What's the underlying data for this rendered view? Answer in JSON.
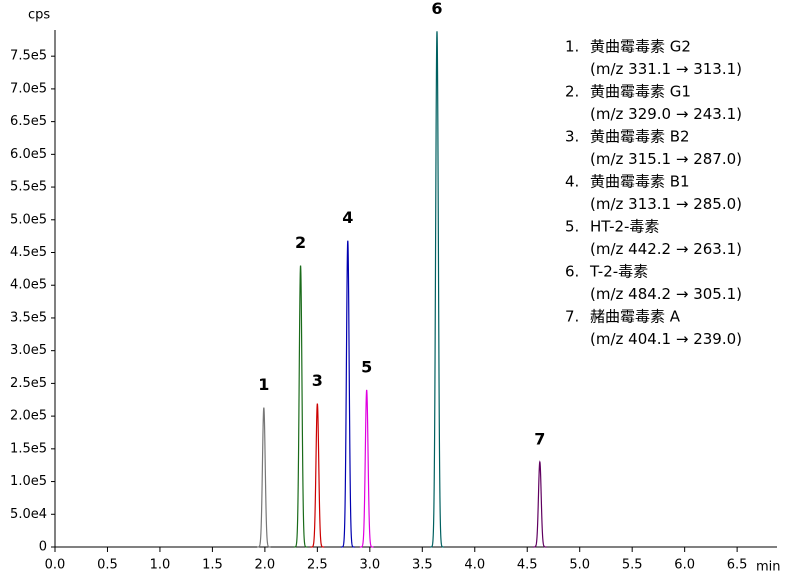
{
  "chart_data": {
    "type": "chromatogram",
    "y_label": "cps",
    "x_label": "min",
    "xlim": [
      0,
      6.88
    ],
    "ylim": [
      0,
      790000
    ],
    "xticks": [
      {
        "value": 0,
        "label": "0.0"
      },
      0.5,
      {
        "value": 1,
        "label": "1.0"
      },
      1.5,
      {
        "value": 2,
        "label": "2.0"
      },
      2.5,
      {
        "value": 3,
        "label": "3.0"
      },
      3.5,
      {
        "value": 4,
        "label": "4.0"
      },
      4.5,
      {
        "value": 5,
        "label": "5.0"
      },
      5.5,
      {
        "value": 6,
        "label": "6.0"
      },
      6.5
    ],
    "yticks": [
      0,
      {
        "value": 50000,
        "label": "5.0e4"
      },
      {
        "value": 100000,
        "label": "1.0e5"
      },
      {
        "value": 150000,
        "label": "1.5e5"
      },
      {
        "value": 200000,
        "label": "2.0e5"
      },
      {
        "value": 250000,
        "label": "2.5e5"
      },
      {
        "value": 300000,
        "label": "3.0e5"
      },
      {
        "value": 350000,
        "label": "3.5e5"
      },
      {
        "value": 400000,
        "label": "4.0e5"
      },
      {
        "value": 450000,
        "label": "4.5e5"
      },
      {
        "value": 500000,
        "label": "5.0e5"
      },
      {
        "value": 550000,
        "label": "5.5e5"
      },
      {
        "value": 600000,
        "label": "6.0e5"
      },
      {
        "value": 650000,
        "label": "6.5e5"
      },
      {
        "value": 700000,
        "label": "7.0e5"
      },
      {
        "value": 750000,
        "label": "7.5e5"
      }
    ],
    "series": [
      {
        "peak_label": "1",
        "legend_number": "1.",
        "name": "黄曲霉毒素 G2",
        "transition": "(m/z 331.1 → 313.1)",
        "color": "#777777",
        "x": [
          1.99
        ],
        "values": [
          213000
        ]
      },
      {
        "peak_label": "2",
        "legend_number": "2.",
        "name": "黄曲霉毒素 G1",
        "transition": "(m/z 329.0 → 243.1)",
        "color": "#1a6b1a",
        "x": [
          2.34
        ],
        "values": [
          430000
        ]
      },
      {
        "peak_label": "3",
        "legend_number": "3.",
        "name": "黄曲霉毒素 B2",
        "transition": "(m/z 315.1 → 287.0)",
        "color": "#cc0000",
        "x": [
          2.5
        ],
        "values": [
          219000
        ]
      },
      {
        "peak_label": "4",
        "legend_number": "4.",
        "name": "黄曲霉毒素 B1",
        "transition": "(m/z 313.1 → 285.0)",
        "color": "#0000b0",
        "x": [
          2.79
        ],
        "values": [
          468000
        ]
      },
      {
        "peak_label": "5",
        "legend_number": "5.",
        "name": "HT-2-毒素",
        "transition": "(m/z 442.2 → 263.1)",
        "color": "#e000e0",
        "x": [
          2.97
        ],
        "values": [
          240000
        ]
      },
      {
        "peak_label": "6",
        "legend_number": "6.",
        "name": "T-2-毒素",
        "transition": "(m/z 484.2 → 305.1)",
        "color": "#006060",
        "x": [
          3.64
        ],
        "values": [
          788000
        ]
      },
      {
        "peak_label": "7",
        "legend_number": "7.",
        "name": "赭曲霉毒素 A",
        "transition": "(m/z 404.1 → 239.0)",
        "color": "#600060",
        "x": [
          4.62
        ],
        "values": [
          130000
        ]
      }
    ]
  }
}
